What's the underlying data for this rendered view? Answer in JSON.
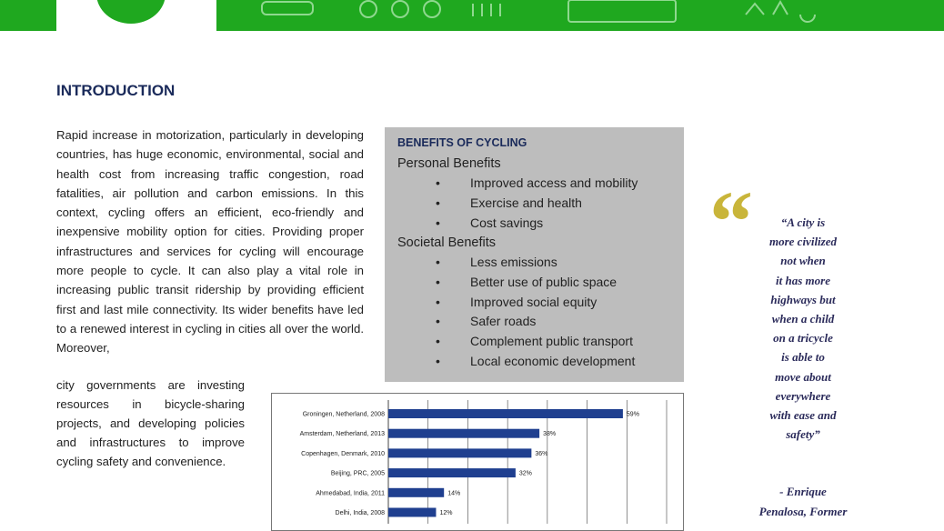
{
  "introduction": {
    "heading": "INTRODUCTION",
    "paragraph_1": "Rapid increase in motorization, particularly in developing countries, has huge economic, environmental, social and health cost from increasing traffic congestion, road fatalities, air pollution and carbon emissions. In this context, cycling offers an efficient, eco-friendly and inexpensive mobility option for cities. Providing proper infrastructures and services for cycling will encourage more people to cycle. It can also play a vital role in increasing public transit ridership by providing efficient first and last mile connectivity. Its wider benefits have led to a renewed interest in cycling in cities all over the world. Moreover,",
    "paragraph_2": "city governments are investing resources in bicycle-sharing projects, and developing policies and infrastructures to improve cycling safety and convenience."
  },
  "benefits": {
    "title": "BENEFITS OF CYCLING",
    "groups": [
      {
        "heading": "Personal Benefits",
        "items": [
          "Improved access and mobility",
          "Exercise and health",
          "Cost savings"
        ]
      },
      {
        "heading": "Societal Benefits",
        "items": [
          "Less emissions",
          "Better use of public space",
          "Improved social equity",
          "Safer roads",
          "Complement public transport",
          "Local economic development"
        ]
      }
    ]
  },
  "quote": {
    "lines": [
      "“A city is",
      "more civilized",
      "not when",
      "it has more",
      "highways but",
      "when a child",
      "on a tricycle",
      "is able to",
      "move about",
      "everywhere",
      "with ease and",
      "safety”"
    ],
    "attribution": [
      "- Enrique",
      "Penalosa, Former"
    ]
  },
  "chart_data": {
    "type": "barh",
    "categories": [
      "Groningen, Netherland, 2008",
      "Amsterdam, Netherland, 2013",
      "Copenhagen, Denmark, 2010",
      "Beijing, PRC, 2005",
      "Ahmedabad, India, 2011",
      "Delhi, India, 2008"
    ],
    "values": [
      59,
      38,
      36,
      32,
      14,
      12
    ],
    "value_labels": [
      "59%",
      "38%",
      "36%",
      "32%",
      "14%",
      "12%"
    ],
    "color": "#1f3f8f",
    "xlim": [
      0,
      70
    ]
  }
}
